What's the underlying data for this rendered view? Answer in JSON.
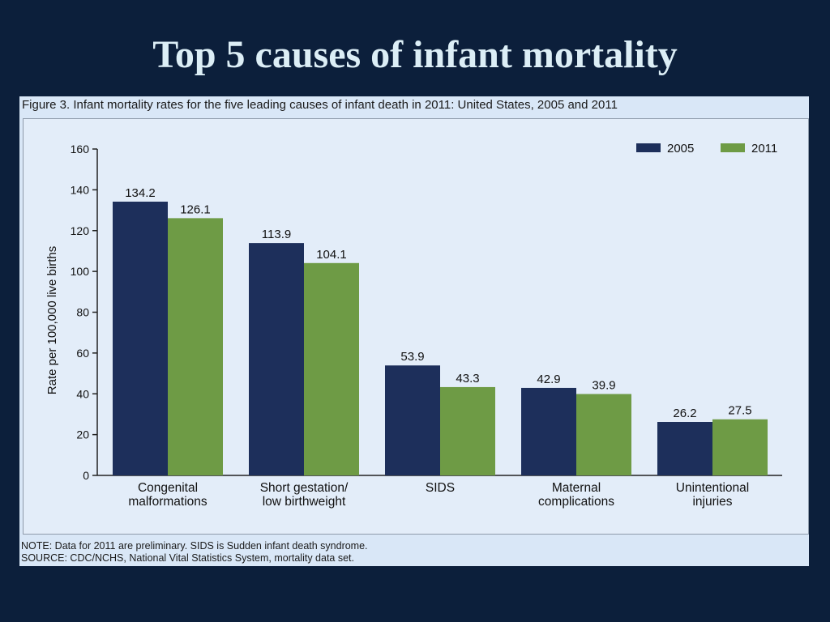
{
  "slide": {
    "title": "Top 5 causes of infant mortality"
  },
  "figure": {
    "caption": "Figure 3. Infant mortality rates for the five leading causes of infant death in 2011: United States, 2005 and 2011",
    "note": "NOTE: Data for 2011 are preliminary. SIDS is Sudden infant death syndrome.",
    "source": "SOURCE: CDC/NCHS, National Vital Statistics System, mortality data set."
  },
  "colors": {
    "background": "#0c1f3b",
    "title": "#dceef6",
    "panel": "#d9e7f7",
    "series_2005": "#1d2f5b",
    "series_2011": "#6e9b45"
  },
  "chart_data": {
    "type": "bar",
    "title": "",
    "xlabel": "",
    "ylabel": "Rate per 100,000 live births",
    "ylim": [
      0,
      160
    ],
    "yticks": [
      0,
      20,
      40,
      60,
      80,
      100,
      120,
      140,
      160
    ],
    "grid": false,
    "legend_position": "top-right",
    "categories": [
      [
        "Congenital",
        "malformations"
      ],
      [
        "Short gestation/",
        "low birthweight"
      ],
      [
        "SIDS"
      ],
      [
        "Maternal",
        "complications"
      ],
      [
        "Unintentional",
        "injuries"
      ]
    ],
    "series": [
      {
        "name": "2005",
        "color": "#1d2f5b",
        "values": [
          134.2,
          113.9,
          53.9,
          42.9,
          26.2
        ],
        "labels": [
          "134.2",
          "113.9",
          "53.9",
          "42.9",
          "26.2"
        ]
      },
      {
        "name": "2011",
        "color": "#6e9b45",
        "values": [
          126.1,
          104.1,
          43.3,
          39.9,
          27.5
        ],
        "labels": [
          "126.1",
          "104.1",
          "43.3",
          "39.9",
          "27.5"
        ]
      }
    ]
  }
}
